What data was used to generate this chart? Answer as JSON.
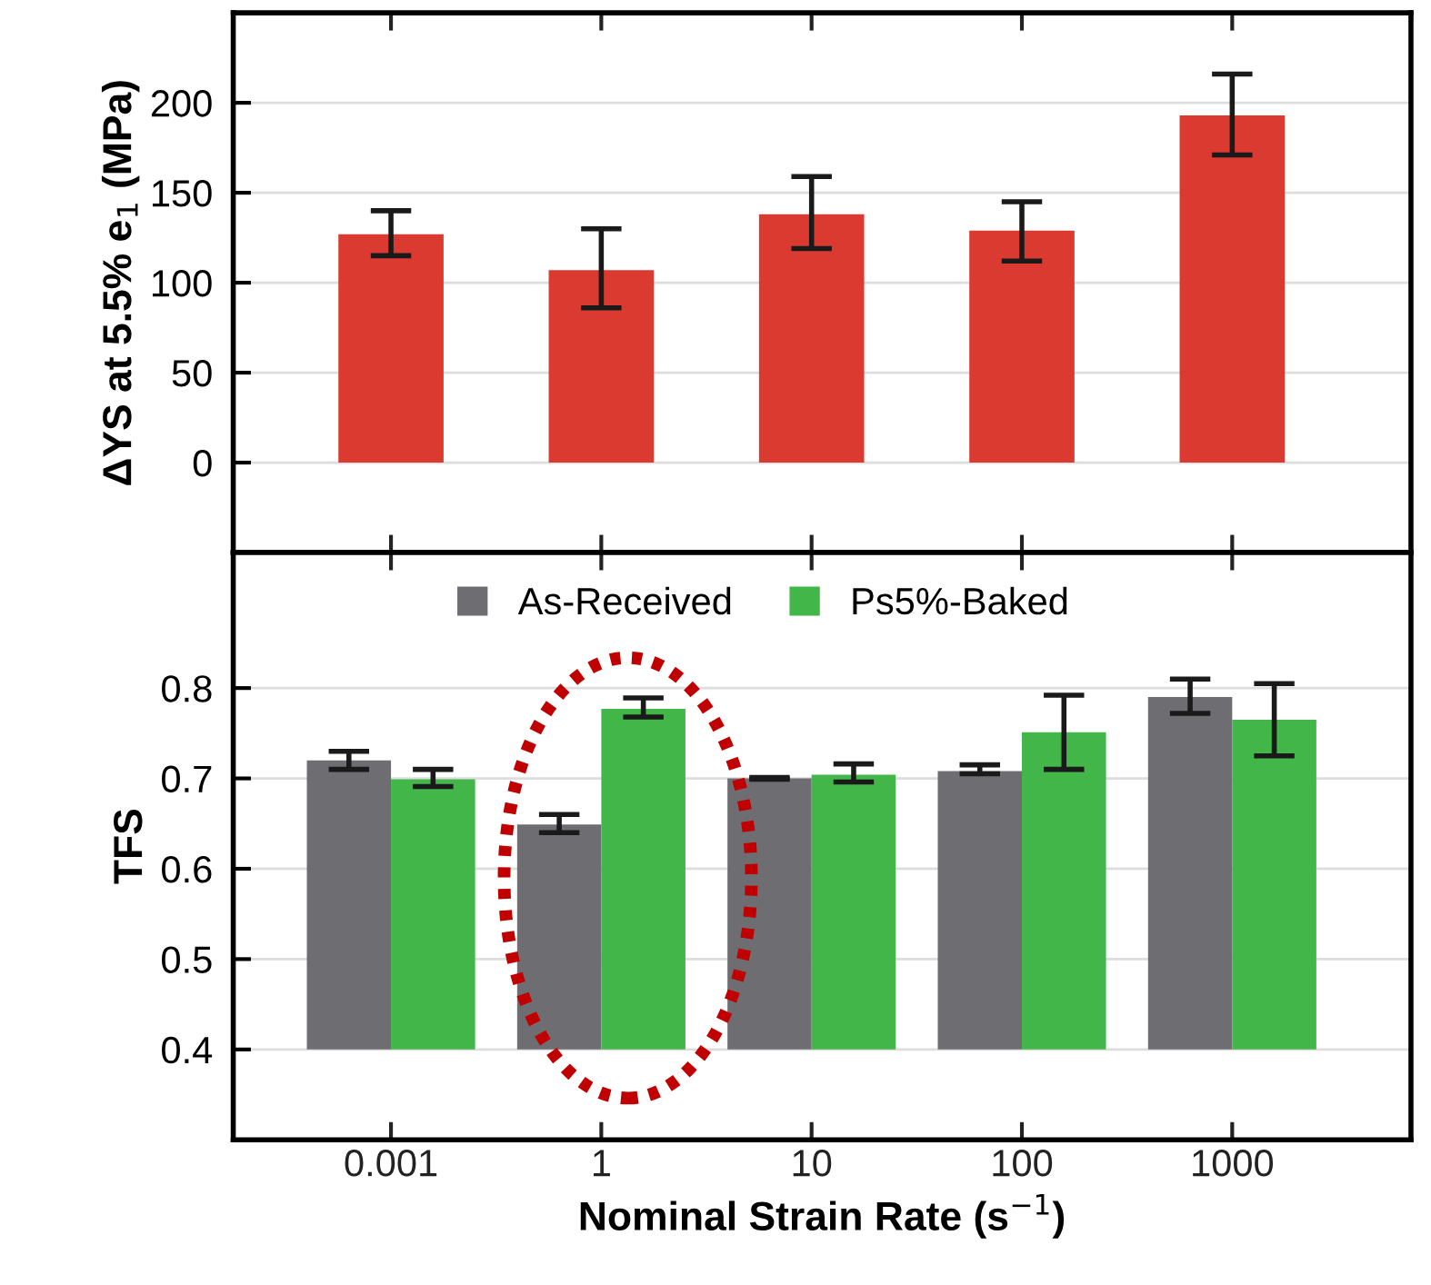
{
  "chart_data": [
    {
      "type": "bar",
      "ylabel": "ΔYS at 5.5% e$_{1}$ (MPa)",
      "categories": [
        "0.001",
        "1",
        "10",
        "100",
        "1000"
      ],
      "tick_labels": "y",
      "values": [
        127,
        107,
        138,
        129,
        193
      ],
      "color": "#db3a30",
      "errors": [
        [
          115,
          140
        ],
        [
          86,
          130
        ],
        [
          119,
          159
        ],
        [
          112,
          145
        ],
        [
          171,
          216
        ]
      ],
      "ylim": [
        -50,
        250
      ],
      "yticks": [
        0,
        50,
        100,
        150,
        200
      ],
      "grid": "y"
    },
    {
      "type": "bar",
      "ylabel": "TFS",
      "xlabel": "Nominal Strain Rate (s$^{−1}$)",
      "categories": [
        "0.001",
        "1",
        "10",
        "100",
        "1000"
      ],
      "series": [
        {
          "name": "As-Received",
          "color": "#6e6e72",
          "base": [
            0.4,
            0.4,
            0.4,
            0.4,
            0.4
          ],
          "values": [
            0.32,
            0.249,
            0.3,
            0.308,
            0.39
          ],
          "errors": [
            [
              0.71,
              0.73
            ],
            [
              0.64,
              0.66
            ],
            [
              0.699,
              0.701
            ],
            [
              0.705,
              0.715
            ],
            [
              0.772,
              0.81
            ]
          ]
        },
        {
          "name": "Ps5%-Baked",
          "color": "#42b649",
          "base": [
            0.4,
            0.4,
            0.4,
            0.4,
            0.4
          ],
          "values": [
            0.299,
            0.377,
            0.304,
            0.351,
            0.365
          ],
          "errors": [
            [
              0.691,
              0.71
            ],
            [
              0.768,
              0.789
            ],
            [
              0.696,
              0.716
            ],
            [
              0.71,
              0.792
            ],
            [
              0.725,
              0.805
            ]
          ]
        }
      ],
      "ylim": [
        0.3,
        0.95
      ],
      "yticks": [
        0.4,
        0.5,
        0.6,
        0.7,
        0.8
      ],
      "grid": "y",
      "legend": "top"
    }
  ]
}
